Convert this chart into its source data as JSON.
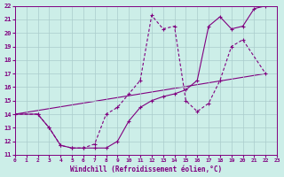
{
  "title": "",
  "xlabel": "Windchill (Refroidissement éolien,°C)",
  "ylabel": "",
  "xlim": [
    0,
    23
  ],
  "ylim": [
    11,
    22
  ],
  "xticks": [
    0,
    1,
    2,
    3,
    4,
    5,
    6,
    7,
    8,
    9,
    10,
    11,
    12,
    13,
    14,
    15,
    16,
    17,
    18,
    19,
    20,
    21,
    22,
    23
  ],
  "yticks": [
    11,
    12,
    13,
    14,
    15,
    16,
    17,
    18,
    19,
    20,
    21,
    22
  ],
  "bg_color": "#cceee8",
  "grid_color": "#aacccc",
  "line_color": "#800080",
  "series1_x": [
    0,
    2,
    3,
    4,
    5,
    6,
    7,
    8,
    9,
    10,
    11,
    12,
    13,
    14,
    15,
    16,
    17,
    18,
    19,
    20,
    21,
    22
  ],
  "series1_y": [
    14,
    14,
    13,
    11.7,
    11.5,
    11.5,
    11.5,
    11.5,
    12.0,
    13.5,
    14.5,
    15.0,
    15.3,
    15.5,
    15.8,
    16.5,
    20.5,
    21.2,
    20.3,
    20.5,
    21.8,
    22.0
  ],
  "series2_x": [
    0,
    2,
    3,
    4,
    5,
    6,
    7,
    8,
    9,
    10,
    11,
    12,
    13,
    14,
    15,
    16,
    17,
    18,
    19,
    20,
    22
  ],
  "series2_y": [
    14,
    14,
    13,
    11.7,
    11.5,
    11.5,
    11.8,
    14.0,
    14.5,
    15.5,
    16.5,
    21.3,
    20.3,
    20.5,
    15.0,
    14.2,
    14.8,
    16.5,
    19.0,
    19.5,
    17.0
  ],
  "series3_x": [
    0,
    22
  ],
  "series3_y": [
    14,
    17.0
  ]
}
